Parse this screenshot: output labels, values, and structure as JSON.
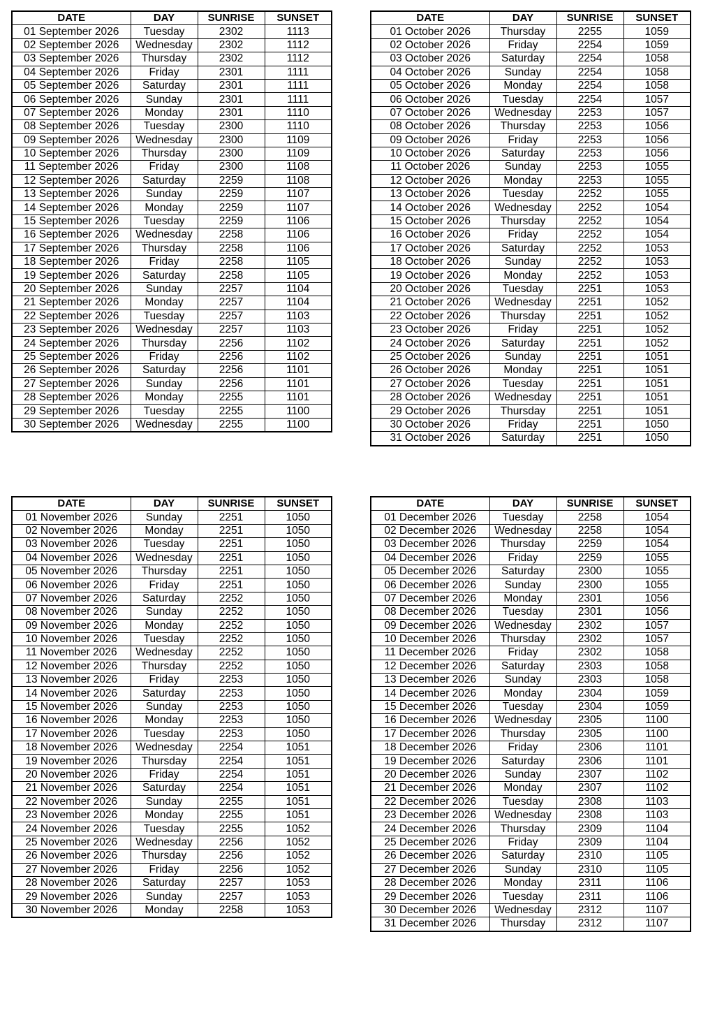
{
  "headers": [
    "DATE",
    "DAY",
    "SUNRISE",
    "SUNSET"
  ],
  "tables": [
    {
      "month": "September 2026",
      "rows": [
        [
          "01 September 2026",
          "Tuesday",
          "2302",
          "1113"
        ],
        [
          "02 September 2026",
          "Wednesday",
          "2302",
          "1112"
        ],
        [
          "03 September 2026",
          "Thursday",
          "2302",
          "1112"
        ],
        [
          "04 September 2026",
          "Friday",
          "2301",
          "1111"
        ],
        [
          "05 September 2026",
          "Saturday",
          "2301",
          "1111"
        ],
        [
          "06 September 2026",
          "Sunday",
          "2301",
          "1111"
        ],
        [
          "07 September 2026",
          "Monday",
          "2301",
          "1110"
        ],
        [
          "08 September 2026",
          "Tuesday",
          "2300",
          "1110"
        ],
        [
          "09 September 2026",
          "Wednesday",
          "2300",
          "1109"
        ],
        [
          "10 September 2026",
          "Thursday",
          "2300",
          "1109"
        ],
        [
          "11 September 2026",
          "Friday",
          "2300",
          "1108"
        ],
        [
          "12 September 2026",
          "Saturday",
          "2259",
          "1108"
        ],
        [
          "13 September 2026",
          "Sunday",
          "2259",
          "1107"
        ],
        [
          "14 September 2026",
          "Monday",
          "2259",
          "1107"
        ],
        [
          "15 September 2026",
          "Tuesday",
          "2259",
          "1106"
        ],
        [
          "16 September 2026",
          "Wednesday",
          "2258",
          "1106"
        ],
        [
          "17 September 2026",
          "Thursday",
          "2258",
          "1106"
        ],
        [
          "18 September 2026",
          "Friday",
          "2258",
          "1105"
        ],
        [
          "19 September 2026",
          "Saturday",
          "2258",
          "1105"
        ],
        [
          "20 September 2026",
          "Sunday",
          "2257",
          "1104"
        ],
        [
          "21 September 2026",
          "Monday",
          "2257",
          "1104"
        ],
        [
          "22 September 2026",
          "Tuesday",
          "2257",
          "1103"
        ],
        [
          "23 September 2026",
          "Wednesday",
          "2257",
          "1103"
        ],
        [
          "24 September 2026",
          "Thursday",
          "2256",
          "1102"
        ],
        [
          "25 September 2026",
          "Friday",
          "2256",
          "1102"
        ],
        [
          "26 September 2026",
          "Saturday",
          "2256",
          "1101"
        ],
        [
          "27 September 2026",
          "Sunday",
          "2256",
          "1101"
        ],
        [
          "28 September 2026",
          "Monday",
          "2255",
          "1101"
        ],
        [
          "29 September 2026",
          "Tuesday",
          "2255",
          "1100"
        ],
        [
          "30 September 2026",
          "Wednesday",
          "2255",
          "1100"
        ]
      ]
    },
    {
      "month": "October 2026",
      "rows": [
        [
          "01 October 2026",
          "Thursday",
          "2255",
          "1059"
        ],
        [
          "02 October 2026",
          "Friday",
          "2254",
          "1059"
        ],
        [
          "03 October 2026",
          "Saturday",
          "2254",
          "1058"
        ],
        [
          "04 October 2026",
          "Sunday",
          "2254",
          "1058"
        ],
        [
          "05 October 2026",
          "Monday",
          "2254",
          "1058"
        ],
        [
          "06 October 2026",
          "Tuesday",
          "2254",
          "1057"
        ],
        [
          "07 October 2026",
          "Wednesday",
          "2253",
          "1057"
        ],
        [
          "08 October 2026",
          "Thursday",
          "2253",
          "1056"
        ],
        [
          "09 October 2026",
          "Friday",
          "2253",
          "1056"
        ],
        [
          "10 October 2026",
          "Saturday",
          "2253",
          "1056"
        ],
        [
          "11 October 2026",
          "Sunday",
          "2253",
          "1055"
        ],
        [
          "12 October 2026",
          "Monday",
          "2253",
          "1055"
        ],
        [
          "13 October 2026",
          "Tuesday",
          "2252",
          "1055"
        ],
        [
          "14 October 2026",
          "Wednesday",
          "2252",
          "1054"
        ],
        [
          "15 October 2026",
          "Thursday",
          "2252",
          "1054"
        ],
        [
          "16 October 2026",
          "Friday",
          "2252",
          "1054"
        ],
        [
          "17 October 2026",
          "Saturday",
          "2252",
          "1053"
        ],
        [
          "18 October 2026",
          "Sunday",
          "2252",
          "1053"
        ],
        [
          "19 October 2026",
          "Monday",
          "2252",
          "1053"
        ],
        [
          "20 October 2026",
          "Tuesday",
          "2251",
          "1053"
        ],
        [
          "21 October 2026",
          "Wednesday",
          "2251",
          "1052"
        ],
        [
          "22 October 2026",
          "Thursday",
          "2251",
          "1052"
        ],
        [
          "23 October 2026",
          "Friday",
          "2251",
          "1052"
        ],
        [
          "24 October 2026",
          "Saturday",
          "2251",
          "1052"
        ],
        [
          "25 October 2026",
          "Sunday",
          "2251",
          "1051"
        ],
        [
          "26 October 2026",
          "Monday",
          "2251",
          "1051"
        ],
        [
          "27 October 2026",
          "Tuesday",
          "2251",
          "1051"
        ],
        [
          "28 October 2026",
          "Wednesday",
          "2251",
          "1051"
        ],
        [
          "29 October 2026",
          "Thursday",
          "2251",
          "1051"
        ],
        [
          "30 October 2026",
          "Friday",
          "2251",
          "1050"
        ],
        [
          "31 October 2026",
          "Saturday",
          "2251",
          "1050"
        ]
      ]
    },
    {
      "month": "November 2026",
      "rows": [
        [
          "01 November 2026",
          "Sunday",
          "2251",
          "1050"
        ],
        [
          "02 November 2026",
          "Monday",
          "2251",
          "1050"
        ],
        [
          "03 November 2026",
          "Tuesday",
          "2251",
          "1050"
        ],
        [
          "04 November 2026",
          "Wednesday",
          "2251",
          "1050"
        ],
        [
          "05 November 2026",
          "Thursday",
          "2251",
          "1050"
        ],
        [
          "06 November 2026",
          "Friday",
          "2251",
          "1050"
        ],
        [
          "07 November 2026",
          "Saturday",
          "2252",
          "1050"
        ],
        [
          "08 November 2026",
          "Sunday",
          "2252",
          "1050"
        ],
        [
          "09 November 2026",
          "Monday",
          "2252",
          "1050"
        ],
        [
          "10 November 2026",
          "Tuesday",
          "2252",
          "1050"
        ],
        [
          "11 November 2026",
          "Wednesday",
          "2252",
          "1050"
        ],
        [
          "12 November 2026",
          "Thursday",
          "2252",
          "1050"
        ],
        [
          "13 November 2026",
          "Friday",
          "2253",
          "1050"
        ],
        [
          "14 November 2026",
          "Saturday",
          "2253",
          "1050"
        ],
        [
          "15 November 2026",
          "Sunday",
          "2253",
          "1050"
        ],
        [
          "16 November 2026",
          "Monday",
          "2253",
          "1050"
        ],
        [
          "17 November 2026",
          "Tuesday",
          "2253",
          "1050"
        ],
        [
          "18 November 2026",
          "Wednesday",
          "2254",
          "1051"
        ],
        [
          "19 November 2026",
          "Thursday",
          "2254",
          "1051"
        ],
        [
          "20 November 2026",
          "Friday",
          "2254",
          "1051"
        ],
        [
          "21 November 2026",
          "Saturday",
          "2254",
          "1051"
        ],
        [
          "22 November 2026",
          "Sunday",
          "2255",
          "1051"
        ],
        [
          "23 November 2026",
          "Monday",
          "2255",
          "1051"
        ],
        [
          "24 November 2026",
          "Tuesday",
          "2255",
          "1052"
        ],
        [
          "25 November 2026",
          "Wednesday",
          "2256",
          "1052"
        ],
        [
          "26 November 2026",
          "Thursday",
          "2256",
          "1052"
        ],
        [
          "27 November 2026",
          "Friday",
          "2256",
          "1052"
        ],
        [
          "28 November 2026",
          "Saturday",
          "2257",
          "1053"
        ],
        [
          "29 November 2026",
          "Sunday",
          "2257",
          "1053"
        ],
        [
          "30 November 2026",
          "Monday",
          "2258",
          "1053"
        ]
      ]
    },
    {
      "month": "December 2026",
      "rows": [
        [
          "01 December 2026",
          "Tuesday",
          "2258",
          "1054"
        ],
        [
          "02 December 2026",
          "Wednesday",
          "2258",
          "1054"
        ],
        [
          "03 December 2026",
          "Thursday",
          "2259",
          "1054"
        ],
        [
          "04 December 2026",
          "Friday",
          "2259",
          "1055"
        ],
        [
          "05 December 2026",
          "Saturday",
          "2300",
          "1055"
        ],
        [
          "06 December 2026",
          "Sunday",
          "2300",
          "1055"
        ],
        [
          "07 December 2026",
          "Monday",
          "2301",
          "1056"
        ],
        [
          "08 December 2026",
          "Tuesday",
          "2301",
          "1056"
        ],
        [
          "09 December 2026",
          "Wednesday",
          "2302",
          "1057"
        ],
        [
          "10 December 2026",
          "Thursday",
          "2302",
          "1057"
        ],
        [
          "11 December 2026",
          "Friday",
          "2302",
          "1058"
        ],
        [
          "12 December 2026",
          "Saturday",
          "2303",
          "1058"
        ],
        [
          "13 December 2026",
          "Sunday",
          "2303",
          "1058"
        ],
        [
          "14 December 2026",
          "Monday",
          "2304",
          "1059"
        ],
        [
          "15 December 2026",
          "Tuesday",
          "2304",
          "1059"
        ],
        [
          "16 December 2026",
          "Wednesday",
          "2305",
          "1100"
        ],
        [
          "17 December 2026",
          "Thursday",
          "2305",
          "1100"
        ],
        [
          "18 December 2026",
          "Friday",
          "2306",
          "1101"
        ],
        [
          "19 December 2026",
          "Saturday",
          "2306",
          "1101"
        ],
        [
          "20 December 2026",
          "Sunday",
          "2307",
          "1102"
        ],
        [
          "21 December 2026",
          "Monday",
          "2307",
          "1102"
        ],
        [
          "22 December 2026",
          "Tuesday",
          "2308",
          "1103"
        ],
        [
          "23 December 2026",
          "Wednesday",
          "2308",
          "1103"
        ],
        [
          "24 December 2026",
          "Thursday",
          "2309",
          "1104"
        ],
        [
          "25 December 2026",
          "Friday",
          "2309",
          "1104"
        ],
        [
          "26 December 2026",
          "Saturday",
          "2310",
          "1105"
        ],
        [
          "27 December 2026",
          "Sunday",
          "2310",
          "1105"
        ],
        [
          "28 December 2026",
          "Monday",
          "2311",
          "1106"
        ],
        [
          "29 December 2026",
          "Tuesday",
          "2311",
          "1106"
        ],
        [
          "30 December 2026",
          "Wednesday",
          "2312",
          "1107"
        ],
        [
          "31 December 2026",
          "Thursday",
          "2312",
          "1107"
        ]
      ]
    }
  ]
}
